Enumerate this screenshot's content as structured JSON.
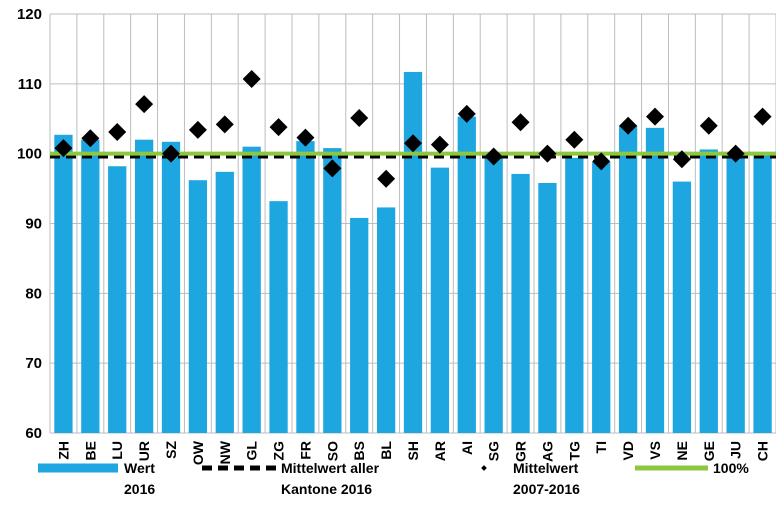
{
  "chart_data": {
    "type": "bar",
    "categories": [
      "ZH",
      "BE",
      "LU",
      "UR",
      "SZ",
      "OW",
      "NW",
      "GL",
      "ZG",
      "FR",
      "SO",
      "BS",
      "BL",
      "SH",
      "AR",
      "AI",
      "SG",
      "GR",
      "AG",
      "TG",
      "TI",
      "VD",
      "VS",
      "NE",
      "GE",
      "JU",
      "CH"
    ],
    "ylim": [
      60,
      120
    ],
    "yticks": [
      60,
      70,
      80,
      90,
      100,
      110,
      120
    ],
    "grid": true,
    "legend_position": "bottom",
    "series": [
      {
        "name": "Wert 2016",
        "type": "bar",
        "color": "#1ea6e0",
        "values": [
          102.7,
          102.0,
          98.2,
          102.0,
          101.7,
          96.2,
          97.4,
          101.0,
          93.2,
          101.8,
          100.8,
          90.8,
          92.3,
          111.7,
          98.0,
          105.3,
          99.5,
          97.1,
          95.8,
          99.4,
          98.8,
          104.0,
          103.7,
          96.0,
          100.6,
          100.0,
          100.0
        ]
      },
      {
        "name": "Mittelwert aller Kantone 2016",
        "type": "line",
        "style": "dashed",
        "color": "#000000",
        "value": 99.6
      },
      {
        "name": "Mittelwert 2007-2016",
        "type": "scatter",
        "marker": "diamond",
        "color": "#000000",
        "values": [
          100.8,
          102.2,
          103.1,
          107.1,
          100.0,
          103.4,
          104.2,
          110.7,
          103.8,
          102.3,
          97.9,
          105.1,
          96.4,
          101.5,
          101.3,
          105.7,
          99.6,
          104.5,
          100.0,
          102.0,
          98.9,
          104.0,
          105.3,
          99.2,
          104.0,
          100.0,
          105.3
        ]
      },
      {
        "name": "100%",
        "type": "line",
        "style": "solid",
        "color": "#8dc63f",
        "value": 100
      }
    ]
  },
  "legend": [
    {
      "line1": "Wert",
      "line2": "2016"
    },
    {
      "line1": "Mittelwert aller",
      "line2": "Kantone 2016"
    },
    {
      "line1": "Mittelwert",
      "line2": "2007-2016"
    },
    {
      "line1": "100%",
      "line2": ""
    }
  ]
}
